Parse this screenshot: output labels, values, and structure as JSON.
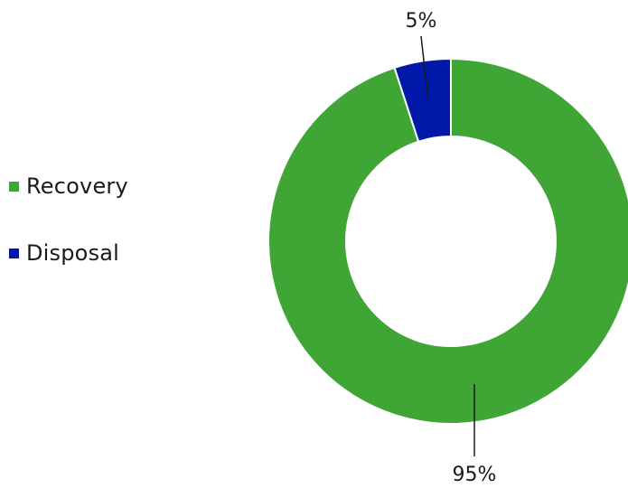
{
  "chart_data": {
    "type": "pie",
    "style": "donut",
    "categories": [
      "Recovery",
      "Disposal"
    ],
    "values": [
      95,
      5
    ],
    "colors": [
      "#3fa535",
      "#0019a8"
    ],
    "data_labels": [
      "95%",
      "5%"
    ],
    "unit": "%",
    "legend_position": "left"
  }
}
